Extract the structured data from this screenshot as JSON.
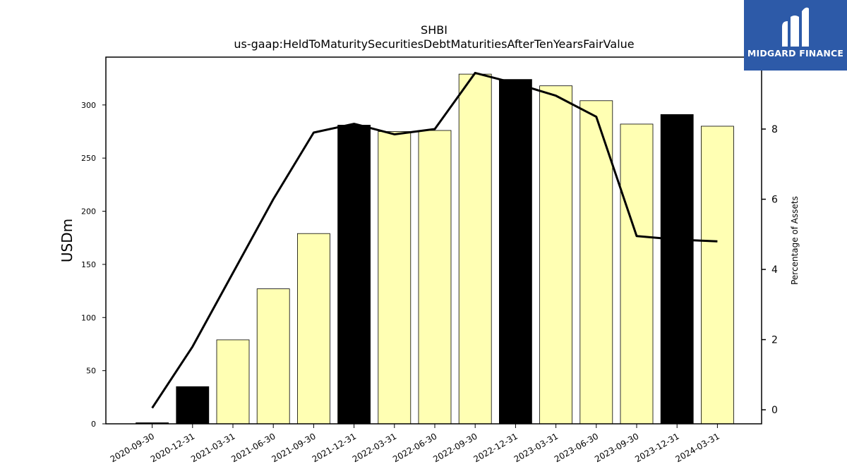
{
  "brand": {
    "name": "MIDGARD FINANCE",
    "bg": "#2d5aa8"
  },
  "chart_data": {
    "type": "bar",
    "title": "SHBI",
    "subtitle": "us-gaap:HeldToMaturitySecuritiesDebtMaturitiesAfterTenYearsFairValue",
    "ylabel": "USDm",
    "y2label": "Percentage of Assets",
    "categories": [
      "2020-09-30",
      "2020-12-31",
      "2021-03-31",
      "2021-06-30",
      "2021-09-30",
      "2021-12-31",
      "2022-03-31",
      "2022-06-30",
      "2022-09-30",
      "2022-12-31",
      "2023-03-31",
      "2023-06-30",
      "2023-09-30",
      "2023-12-31",
      "2024-03-31"
    ],
    "series": [
      {
        "values": [
          1,
          35,
          79,
          127,
          179,
          281,
          275,
          276,
          329,
          324,
          318,
          304,
          282,
          291,
          280
        ],
        "colors": [
          "#000000",
          "#000000",
          "#ffffb3",
          "#ffffb3",
          "#ffffb3",
          "#000000",
          "#ffffb3",
          "#ffffb3",
          "#ffffb3",
          "#000000",
          "#ffffb3",
          "#ffffb3",
          "#ffffb3",
          "#000000",
          "#ffffb3"
        ]
      },
      {
        "axis": "right",
        "type": "line",
        "color": "#000000",
        "values": [
          0.05,
          1.8,
          3.9,
          6.0,
          7.9,
          8.15,
          7.85,
          8.0,
          9.6,
          9.3,
          8.95,
          8.35,
          4.95,
          4.85,
          4.8
        ]
      }
    ],
    "ylim": [
      0,
      345
    ],
    "yticks": [
      0,
      50,
      100,
      150,
      200,
      250,
      300
    ],
    "y2lim": [
      -0.4,
      10.05
    ],
    "y2ticks": [
      0,
      2,
      4,
      6,
      8
    ],
    "grid": false,
    "legend": "none"
  }
}
